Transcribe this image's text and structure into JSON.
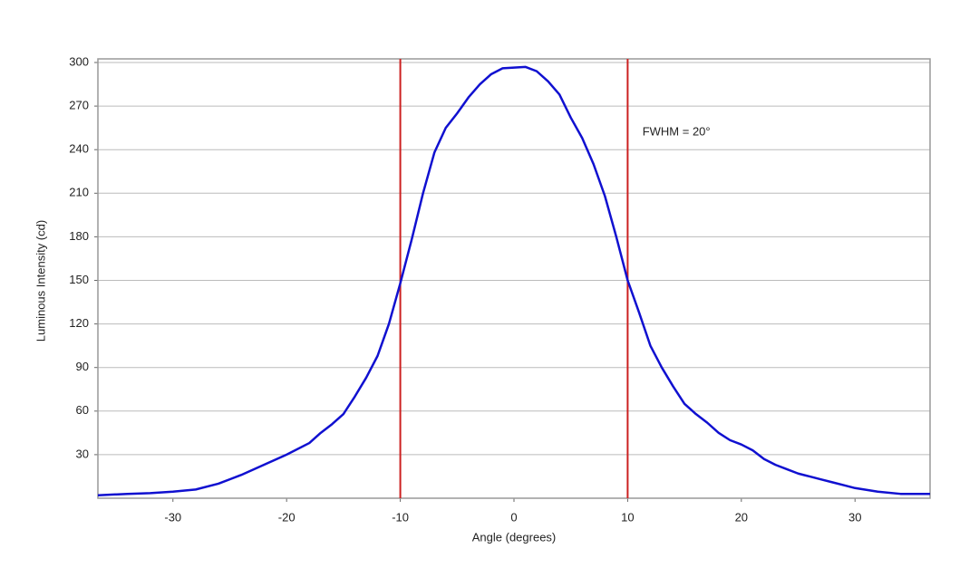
{
  "chart_data": {
    "type": "line",
    "xlabel": "Angle (degrees)",
    "ylabel": "Luminous Intensity (cd)",
    "x": [
      -36.6,
      -34,
      -32,
      -30,
      -28,
      -26,
      -24,
      -22,
      -20,
      -18,
      -17,
      -16,
      -15,
      -14,
      -13,
      -12,
      -11,
      -10,
      -9,
      -8,
      -7,
      -6,
      -5,
      -4,
      -3,
      -2,
      -1,
      0,
      1,
      2,
      3,
      4,
      5,
      6,
      7,
      8,
      9,
      10,
      11,
      12,
      13,
      14,
      15,
      16,
      17,
      18,
      19,
      20,
      21,
      22,
      23,
      24,
      25,
      26,
      27,
      28,
      29,
      30,
      32,
      34,
      36.6
    ],
    "series": [
      {
        "color": "#1010d0",
        "values": [
          2,
          3,
          3.5,
          4.5,
          6,
          10,
          16,
          23,
          30,
          38,
          45,
          51,
          58,
          70,
          83,
          98,
          120,
          148,
          178,
          210,
          238,
          255,
          265,
          276,
          285,
          292,
          296,
          296.5,
          297,
          294,
          287,
          278,
          262,
          248,
          230,
          208,
          180,
          150,
          128,
          105,
          90,
          77,
          65,
          58,
          52,
          45,
          40,
          37,
          33,
          27,
          23,
          20,
          17,
          15,
          13,
          11,
          9,
          7,
          4.5,
          3,
          3
        ]
      }
    ],
    "vlines": [
      -10,
      10
    ],
    "vline_color": "#cc2020",
    "annotation": {
      "text": "FWHM = 20°",
      "x": 11.3,
      "y": 252
    },
    "xlim": [
      -36.6,
      36.6
    ],
    "xticks": [
      -30,
      -20,
      -10,
      0,
      10,
      20,
      30
    ],
    "ylim": [
      0,
      302.5
    ],
    "yticks": [
      30,
      60,
      90,
      120,
      150,
      180,
      210,
      240,
      270,
      300
    ],
    "grid": true
  }
}
